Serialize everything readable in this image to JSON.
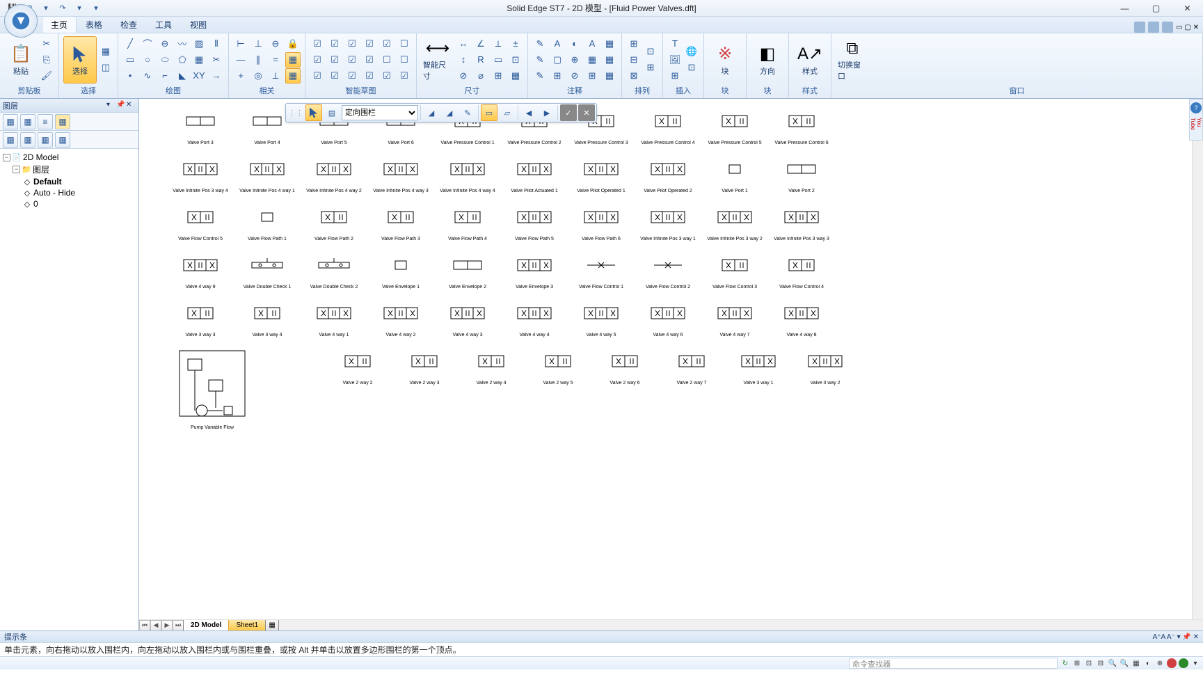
{
  "titlebar": {
    "title": "Solid Edge ST7 - 2D 模型 - [Fluid Power Valves.dft]",
    "qat": {
      "save": "💾",
      "undo": "↶",
      "redo": "↷",
      "more": "▾"
    }
  },
  "ribbon_tabs": [
    "主页",
    "表格",
    "检查",
    "工具",
    "视图"
  ],
  "active_tab": 0,
  "ribbon_groups": {
    "clipboard": {
      "label": "剪贴板",
      "paste": "粘贴"
    },
    "select": {
      "label": "选择",
      "select": "选择"
    },
    "draw": {
      "label": "绘图"
    },
    "relate": {
      "label": "相关"
    },
    "intellisketch": {
      "label": "智能草图"
    },
    "dimension": {
      "label": "尺寸",
      "smartdim": "智能尺寸"
    },
    "annotate": {
      "label": "注释"
    },
    "arrange": {
      "label": "排列"
    },
    "insert": {
      "label": "插入"
    },
    "block": {
      "label": "块",
      "block": "块"
    },
    "orient": {
      "label": "块",
      "orient": "方向"
    },
    "style": {
      "label": "样式",
      "style": "样式"
    },
    "window": {
      "label": "窗口",
      "switch": "切换窗口"
    }
  },
  "left_panel": {
    "title": "图层",
    "tree": {
      "root": "2D Model",
      "layers_label": "图层",
      "default": "Default",
      "autohide": "Auto - Hide",
      "zero": "0"
    }
  },
  "floating_tb": {
    "fence_mode": "定向围栏"
  },
  "sheet_tabs": {
    "model": "2D Model",
    "sheet1": "Sheet1"
  },
  "prompt": {
    "title": "提示条",
    "text": "单击元素，向右拖动以放入围栏内，向左拖动以放入围栏内或与围栏重叠，或按 Alt 并单击以放置多边形围栏的第一个顶点。"
  },
  "status": {
    "cmd_placeholder": "命令查找器"
  },
  "help_icon": "?",
  "youtube": "You Tube",
  "symbols": [
    [
      {
        "l": "Valve Port 3"
      },
      {
        "l": "Valve Port 4"
      },
      {
        "l": "Valve Port 5"
      },
      {
        "l": "Valve Port 6"
      },
      {
        "l": "Valve Pressure Control 1"
      },
      {
        "l": "Valve Pressure Control 2"
      },
      {
        "l": "Valve Pressure Control 3"
      },
      {
        "l": "Valve Pressure Control 4"
      },
      {
        "l": "Valve Pressure Control 5"
      },
      {
        "l": "Valve Pressure Control 6"
      }
    ],
    [
      {
        "l": "Valve Infinite Pos 3 way 4"
      },
      {
        "l": "Valve Infinite Pos 4 way 1"
      },
      {
        "l": "Valve Infinite Pos 4 way 2"
      },
      {
        "l": "Valve Infinite Pos 4 way 3"
      },
      {
        "l": "Valve Infinite Pos 4 way 4"
      },
      {
        "l": "Valve Pilot Actuated 1"
      },
      {
        "l": "Valve Pilot Operated 1"
      },
      {
        "l": "Valve Pilot Operated 2"
      },
      {
        "l": "Valve Port 1"
      },
      {
        "l": "Valve Port 2"
      }
    ],
    [
      {
        "l": "Valve Flow Control 5"
      },
      {
        "l": "Valve Flow Path 1"
      },
      {
        "l": "Valve Flow Path 2"
      },
      {
        "l": "Valve Flow Path 3"
      },
      {
        "l": "Valve Flow Path 4"
      },
      {
        "l": "Valve Flow Path 5"
      },
      {
        "l": "Valve Flow Path 6"
      },
      {
        "l": "Valve Infinite Pos 3 way 1"
      },
      {
        "l": "Valve Infinite Pos 3 way 2"
      },
      {
        "l": "Valve Infinite Pos 3 way 3"
      }
    ],
    [
      {
        "l": "Valve 4 way 9"
      },
      {
        "l": "Valve Double Check 1"
      },
      {
        "l": "Valve Double Check 2"
      },
      {
        "l": "Valve Envelope 1"
      },
      {
        "l": "Valve Envelope 2"
      },
      {
        "l": "Valve Envelope 3"
      },
      {
        "l": "Valve Flow Control 1"
      },
      {
        "l": "Valve Flow Control 2"
      },
      {
        "l": "Valve Flow Control 3"
      },
      {
        "l": "Valve Flow Control 4"
      }
    ],
    [
      {
        "l": "Valve 3 way 3"
      },
      {
        "l": "Valve 3 way 4"
      },
      {
        "l": "Valve 4 way 1"
      },
      {
        "l": "Valve 4 way 2"
      },
      {
        "l": "Valve 4 way 3"
      },
      {
        "l": "Valve 4 way 4"
      },
      {
        "l": "Valve 4 way 5"
      },
      {
        "l": "Valve 4 way 6"
      },
      {
        "l": "Valve 4 way 7"
      },
      {
        "l": "Valve 4 way 8"
      }
    ],
    [
      {
        "l": "Pump Variable Flow"
      },
      {
        "l": ""
      },
      {
        "l": "Valve 2 way 2"
      },
      {
        "l": "Valve 2 way 3"
      },
      {
        "l": "Valve 2 way 4"
      },
      {
        "l": "Valve 2 way 5"
      },
      {
        "l": "Valve 2 way 6"
      },
      {
        "l": "Valve 2 way 7"
      },
      {
        "l": "Valve 3 way 1"
      },
      {
        "l": "Valve 3 way 2"
      }
    ]
  ]
}
